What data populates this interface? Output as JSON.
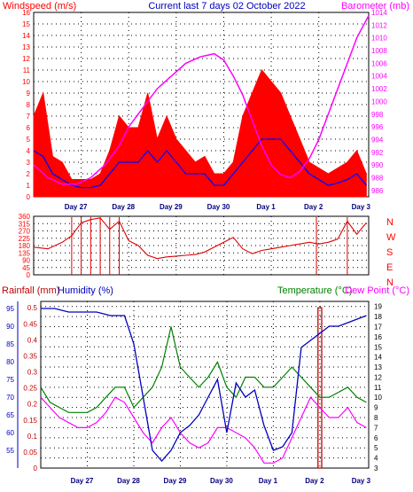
{
  "colors": {
    "wind": "#ff0000",
    "gust_fill": "#ff0000",
    "wind_avg": "#0000ff",
    "barometer": "#ff00ff",
    "direction": "#e00000",
    "rain": "#c00000",
    "humidity": "#0000c0",
    "temperature": "#008000",
    "dewpoint": "#ff00ff",
    "axis_left_top": "#ff0000",
    "axis_right_top": "#ff00ff",
    "title": "#0000c0",
    "grid": "#000000"
  },
  "chart_data": [
    {
      "type": "line",
      "title": "Current last 7 days 02 October 2022",
      "ylabel": "Windspeed (m/s)",
      "y2label": "Barometer (mb)",
      "ylim": [
        0,
        16
      ],
      "y2lim": [
        985,
        1014
      ],
      "yticks": [
        "0",
        "1",
        "2",
        "3",
        "4",
        "5",
        "6",
        "7",
        "8",
        "9",
        "10",
        "11",
        "12",
        "13",
        "14",
        "15",
        "16"
      ],
      "y2ticks": [
        "986",
        "988",
        "990",
        "992",
        "994",
        "996",
        "998",
        "1000",
        "1002",
        "1004",
        "1006",
        "1008",
        "1010",
        "1012",
        "1014"
      ],
      "xticks": [
        "Day 27",
        "Day 28",
        "Day 29",
        "Day 30",
        "Day 1",
        "Day 2",
        "Day 3"
      ],
      "x_domain": [
        26.0,
        33.05
      ],
      "grid": true,
      "series": [
        {
          "key": "gust",
          "x": [
            26.0,
            26.2,
            26.4,
            26.6,
            26.8,
            27.0,
            27.2,
            27.4,
            27.6,
            27.8,
            28.0,
            28.2,
            28.4,
            28.6,
            28.8,
            29.0,
            29.2,
            29.4,
            29.6,
            29.8,
            30.0,
            30.2,
            30.4,
            30.6,
            30.8,
            31.0,
            31.2,
            31.4,
            31.6,
            31.8,
            32.0,
            32.2,
            32.4,
            32.6,
            32.8,
            33.0
          ],
          "y": [
            7,
            9,
            3.5,
            3,
            1.5,
            1.5,
            1.5,
            2,
            4,
            7,
            6,
            6,
            9,
            5,
            7,
            5,
            4,
            3,
            3.5,
            2,
            2,
            3,
            7,
            9,
            11,
            10,
            9,
            7,
            5,
            3,
            2.5,
            2,
            2.5,
            3,
            4,
            2
          ]
        },
        {
          "key": "wind_avg",
          "x": [
            26.0,
            26.2,
            26.4,
            26.6,
            26.8,
            27.0,
            27.2,
            27.4,
            27.6,
            27.8,
            28.0,
            28.2,
            28.4,
            28.6,
            28.8,
            29.0,
            29.2,
            29.4,
            29.6,
            29.8,
            30.0,
            30.2,
            30.4,
            30.6,
            30.8,
            31.0,
            31.2,
            31.4,
            31.6,
            31.8,
            32.0,
            32.2,
            32.4,
            32.6,
            32.8,
            33.0
          ],
          "y": [
            4,
            3.5,
            2,
            1.5,
            1,
            0.8,
            0.8,
            1,
            2,
            3,
            3,
            3,
            4,
            3,
            4,
            3,
            2,
            2,
            2,
            1,
            1,
            2,
            3,
            4,
            5,
            5,
            5,
            4,
            3,
            2,
            1.5,
            1,
            1.2,
            1.5,
            2,
            1
          ]
        },
        {
          "key": "barometer",
          "x": [
            26.0,
            26.3,
            26.6,
            26.9,
            27.2,
            27.5,
            27.8,
            28.0,
            28.3,
            28.6,
            28.9,
            29.2,
            29.5,
            29.8,
            30.0,
            30.2,
            30.4,
            30.6,
            30.8,
            31.0,
            31.2,
            31.4,
            31.6,
            31.8,
            32.0,
            32.2,
            32.4,
            32.6,
            32.8,
            33.05
          ],
          "y": [
            990,
            988,
            987,
            987,
            988,
            990,
            993,
            996,
            999,
            1002,
            1004,
            1006,
            1007,
            1007.5,
            1006.5,
            1004,
            1001,
            997,
            993,
            990,
            988.5,
            988,
            989,
            991,
            994,
            998,
            1002,
            1006,
            1010,
            1013.5
          ]
        }
      ]
    },
    {
      "type": "line",
      "title": "",
      "ylabel_ticks": [
        "360",
        "315",
        "270",
        "225",
        "180",
        "135",
        "90",
        "45",
        "0"
      ],
      "y2ticks": [
        "N",
        "W",
        "S",
        "E",
        "N"
      ],
      "ylim": [
        0,
        360
      ],
      "x_domain": [
        26.0,
        33.05
      ],
      "grid": true,
      "series": [
        {
          "key": "direction",
          "x": [
            26.0,
            26.3,
            26.6,
            26.8,
            27.0,
            27.2,
            27.4,
            27.6,
            27.8,
            28.0,
            28.2,
            28.4,
            28.6,
            28.8,
            29.0,
            29.2,
            29.4,
            29.6,
            29.8,
            30.0,
            30.2,
            30.4,
            30.6,
            30.8,
            31.0,
            31.2,
            31.4,
            31.6,
            31.8,
            32.0,
            32.2,
            32.4,
            32.6,
            32.8,
            33.0
          ],
          "y": [
            170,
            160,
            200,
            240,
            320,
            340,
            350,
            280,
            330,
            210,
            180,
            120,
            100,
            110,
            115,
            120,
            125,
            140,
            170,
            200,
            230,
            160,
            130,
            150,
            160,
            170,
            180,
            190,
            200,
            190,
            200,
            220,
            330,
            250,
            320
          ]
        }
      ]
    },
    {
      "type": "line",
      "title": "",
      "labels": {
        "rainfall": "Rainfall (mm)",
        "humidity": "Humidity (%)",
        "temperature": "Temperature (°C)",
        "dewpoint": "Dew Point (°C)"
      },
      "rain_ticks": [
        "0",
        "0.05",
        "0.1",
        "0.15",
        "0.2",
        "0.25",
        "0.3",
        "0.35",
        "0.4",
        "0.45",
        "0.5"
      ],
      "humidity_ticks": [
        "55",
        "60",
        "65",
        "70",
        "75",
        "80",
        "85",
        "90",
        "95"
      ],
      "temp_ticks": [
        "3",
        "4",
        "5",
        "6",
        "7",
        "8",
        "9",
        "10",
        "11",
        "12",
        "13",
        "14",
        "15",
        "16",
        "17",
        "18",
        "19"
      ],
      "ylim_temp": [
        3,
        19.5
      ],
      "ylim_humidity": [
        50,
        97
      ],
      "ylim_rain": [
        0,
        0.52
      ],
      "x_domain": [
        26.0,
        33.05
      ],
      "grid": true,
      "series": [
        {
          "key": "humidity",
          "x": [
            26.0,
            26.3,
            26.6,
            26.9,
            27.2,
            27.5,
            27.8,
            28.0,
            28.2,
            28.4,
            28.6,
            28.8,
            29.0,
            29.2,
            29.4,
            29.6,
            29.8,
            30.0,
            30.2,
            30.4,
            30.6,
            30.8,
            31.0,
            31.2,
            31.4,
            31.6,
            31.8,
            32.0,
            32.2,
            32.4,
            32.6,
            32.8,
            33.0
          ],
          "y": [
            95,
            95,
            94,
            94,
            94,
            93,
            93,
            85,
            70,
            55,
            52,
            55,
            60,
            62,
            65,
            70,
            75,
            60,
            74,
            70,
            72,
            62,
            55,
            56,
            60,
            84,
            86,
            88,
            90,
            90,
            91,
            92,
            93
          ]
        },
        {
          "key": "temperature",
          "x": [
            26.0,
            26.2,
            26.4,
            26.6,
            26.8,
            27.0,
            27.2,
            27.4,
            27.6,
            27.8,
            28.0,
            28.2,
            28.4,
            28.6,
            28.8,
            29.0,
            29.2,
            29.4,
            29.6,
            29.8,
            30.0,
            30.2,
            30.4,
            30.6,
            30.8,
            31.0,
            31.2,
            31.4,
            31.6,
            31.8,
            32.0,
            32.2,
            32.4,
            32.6,
            32.8,
            33.0
          ],
          "y": [
            11,
            9.5,
            9,
            8.5,
            8.5,
            8.5,
            9,
            10,
            11,
            11,
            9,
            10,
            11,
            13,
            17,
            13,
            12,
            11,
            12,
            13.5,
            11,
            10,
            12,
            12,
            11,
            11,
            12,
            13,
            12,
            11,
            10,
            10,
            10.5,
            11,
            10,
            9.5
          ]
        },
        {
          "key": "dewpoint",
          "x": [
            26.0,
            26.2,
            26.4,
            26.6,
            26.8,
            27.0,
            27.2,
            27.4,
            27.6,
            27.8,
            28.0,
            28.2,
            28.4,
            28.6,
            28.8,
            29.0,
            29.2,
            29.4,
            29.6,
            29.8,
            30.0,
            30.2,
            30.4,
            30.6,
            30.8,
            31.0,
            31.2,
            31.4,
            31.6,
            31.8,
            32.0,
            32.2,
            32.4,
            32.6,
            32.8,
            33.0
          ],
          "y": [
            10,
            9,
            8,
            7.5,
            7,
            7,
            7.5,
            8.5,
            10,
            9.5,
            8,
            6.5,
            5.5,
            7,
            8,
            6.5,
            5.5,
            5,
            5.5,
            7,
            7,
            6.5,
            6,
            5,
            3.5,
            3.5,
            4,
            6,
            8,
            10,
            9,
            8,
            8,
            9,
            7.5,
            7
          ]
        },
        {
          "key": "rain",
          "x": [
            31.96,
            32.04
          ],
          "y": [
            0.5,
            0.5
          ]
        }
      ]
    }
  ]
}
